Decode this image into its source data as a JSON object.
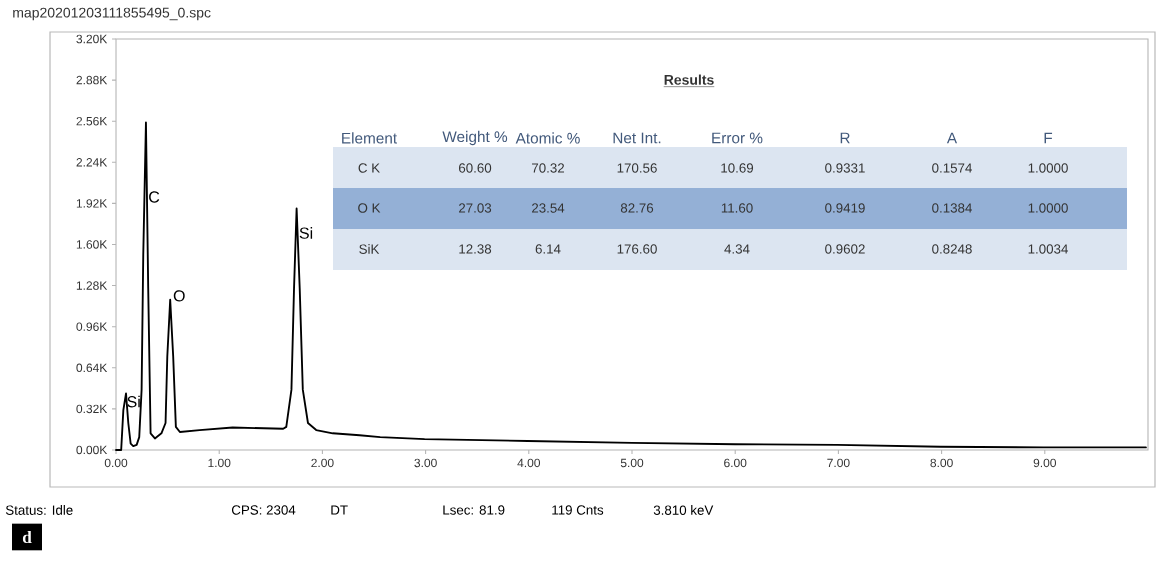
{
  "chart_data": {
    "type": "line",
    "title": "map20201203111855495_0.spc",
    "color": "#000000",
    "line_style": "solid",
    "x": [
      0,
      0.05,
      0.071,
      0.097,
      0.119,
      0.142,
      0.167,
      0.2,
      0.225,
      0.248,
      0.264,
      0.29,
      0.312,
      0.335,
      0.377,
      0.44,
      0.48,
      0.497,
      0.525,
      0.554,
      0.58,
      0.619,
      0.81,
      1.13,
      1.62,
      1.65,
      1.7,
      1.725,
      1.75,
      1.78,
      1.81,
      1.86,
      1.94,
      2.1,
      2.36,
      2.56,
      2.99,
      3.99,
      5.0,
      6.0,
      6.99,
      7.99,
      8.99,
      9.98
    ],
    "values": [
      0,
      0,
      310,
      440,
      210,
      50,
      30,
      40,
      100,
      470,
      1520,
      2550,
      1260,
      130,
      90,
      130,
      210,
      730,
      1170,
      730,
      180,
      140,
      155,
      175,
      165,
      180,
      470,
      1260,
      1880,
      1260,
      470,
      210,
      155,
      130,
      115,
      100,
      85,
      70,
      55,
      45,
      40,
      25,
      20,
      20
    ],
    "xlim": [
      0,
      10
    ],
    "ylim": [
      0,
      3200
    ],
    "xticks": [
      {
        "value": 0,
        "label": "0.00"
      },
      {
        "value": 1,
        "label": "1.00"
      },
      {
        "value": 2,
        "label": "2.00"
      },
      {
        "value": 3,
        "label": "3.00"
      },
      {
        "value": 4,
        "label": "4.00"
      },
      {
        "value": 5,
        "label": "5.00"
      },
      {
        "value": 6,
        "label": "6.00"
      },
      {
        "value": 7,
        "label": "7.00"
      },
      {
        "value": 8,
        "label": "8.00"
      },
      {
        "value": 9,
        "label": "9.00"
      }
    ],
    "yticks": [
      {
        "value": 0,
        "label": "0.00K"
      },
      {
        "value": 320,
        "label": "0.32K"
      },
      {
        "value": 640,
        "label": "0.64K"
      },
      {
        "value": 960,
        "label": "0.96K"
      },
      {
        "value": 1280,
        "label": "1.28K"
      },
      {
        "value": 1600,
        "label": "1.60K"
      },
      {
        "value": 1920,
        "label": "1.92K"
      },
      {
        "value": 2240,
        "label": "2.24K"
      },
      {
        "value": 2560,
        "label": "2.56K"
      },
      {
        "value": 2880,
        "label": "2.88K"
      },
      {
        "value": 3200,
        "label": "3.20K"
      }
    ],
    "annotations": [
      "Results",
      "Element",
      "Weight %",
      "Atomic %",
      "Net Int.",
      "Error %",
      "R",
      "A",
      "F",
      "C K",
      "60.60",
      "70.32",
      "170.56",
      "10.69",
      "0.9331",
      "0.1574",
      "1.0000",
      "O K",
      "27.03",
      "23.54",
      "82.76",
      "11.60",
      "0.9419",
      "0.1384",
      "1.0000",
      "SiK",
      "12.38",
      "6.14",
      "176.60",
      "4.34",
      "0.9602",
      "0.8248",
      "1.0034",
      "Status: Idle",
      "CPS: 2304",
      "DT",
      "Lsec: 81.9",
      "119 Cnts",
      "3.810 keV",
      "d",
      {
        "text": "Si",
        "x": 0.1,
        "y": 377
      },
      {
        "text": "C",
        "x": 0.31,
        "y": 1970
      },
      {
        "text": "O",
        "x": 0.55,
        "y": 1200
      },
      {
        "text": "Si",
        "x": 1.77,
        "y": 1690
      }
    ]
  }
}
